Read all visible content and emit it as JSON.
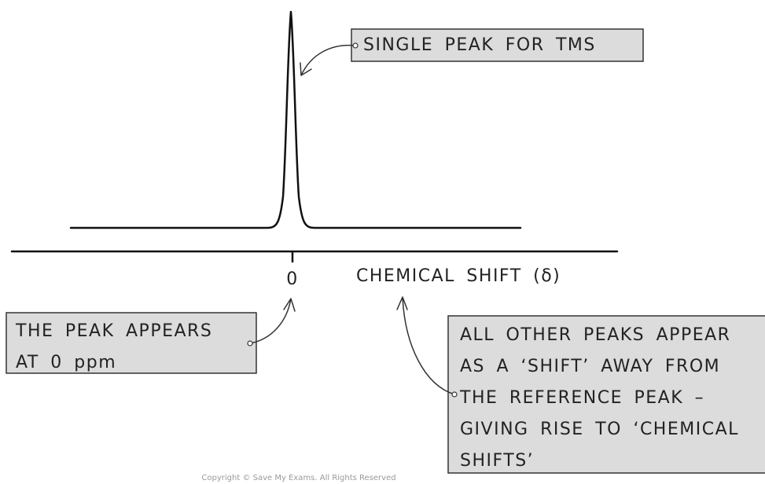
{
  "callouts": [
    {
      "lines": [
        "SINGLE PEAK FOR TMS"
      ]
    },
    {
      "lines": [
        "THE PEAK APPEARS",
        "AT 0 ppm"
      ]
    },
    {
      "lines": [
        "ALL OTHER PEAKS APPEAR",
        "AS A ‘SHIFT’ AWAY FROM",
        "THE REFERENCE PEAK –",
        "GIVING RISE TO ‘CHEMICAL",
        "SHIFTS’"
      ]
    }
  ],
  "axis": {
    "tick_label": "0",
    "label": "CHEMICAL SHIFT (δ)"
  },
  "footer": "Copyright © Save My Exams. All Rights Reserved"
}
